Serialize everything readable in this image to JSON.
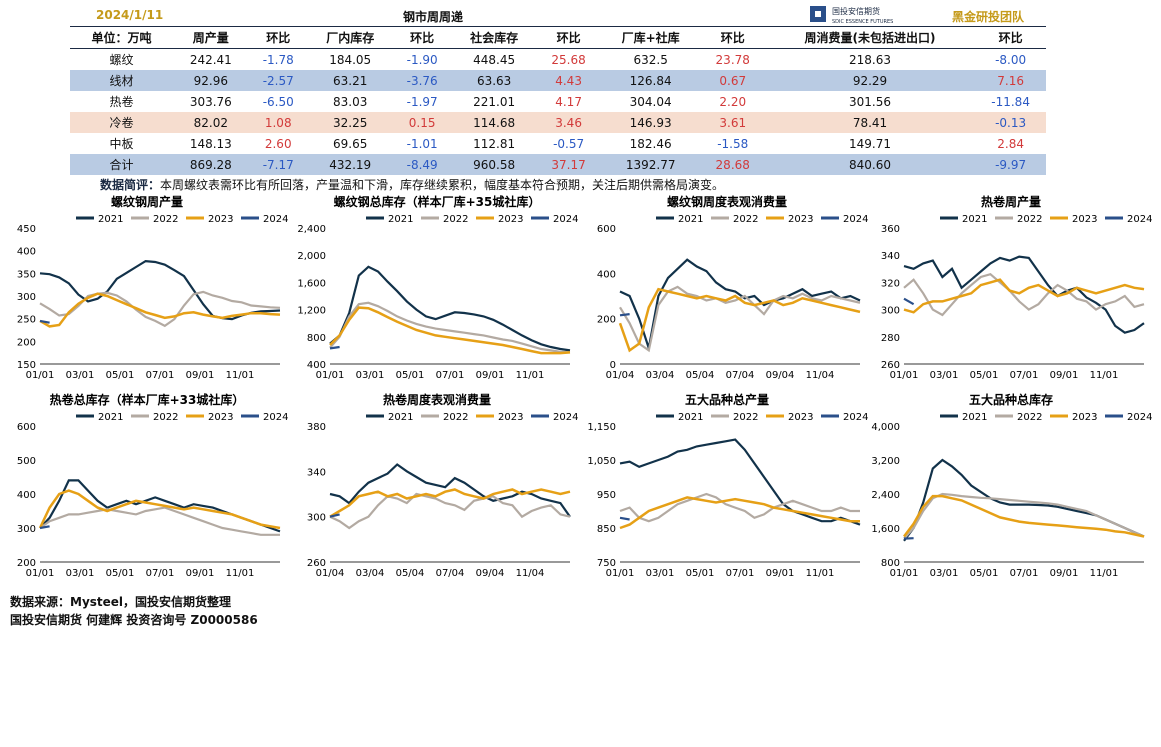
{
  "header": {
    "date": "2024/1/11",
    "title": "钢市周周递",
    "brand_cn": "国投安信期货",
    "brand_en": "SDIC ESSENCE FUTURES",
    "team": "黑金研投团队"
  },
  "table": {
    "headers": [
      "单位：万吨",
      "周产量",
      "环比",
      "厂内库存",
      "环比",
      "社会库存",
      "环比",
      "厂库+社库",
      "环比",
      "周消费量(未包括进出口)",
      "环比"
    ],
    "rows": [
      [
        "螺纹",
        "242.41",
        "-1.78",
        "184.05",
        "-1.90",
        "448.45",
        "25.68",
        "632.5",
        "23.78",
        "218.63",
        "-8.00"
      ],
      [
        "线材",
        "92.96",
        "-2.57",
        "63.21",
        "-3.76",
        "63.63",
        "4.43",
        "126.84",
        "0.67",
        "92.29",
        "7.16"
      ],
      [
        "热卷",
        "303.76",
        "-6.50",
        "83.03",
        "-1.97",
        "221.01",
        "4.17",
        "304.04",
        "2.20",
        "301.56",
        "-11.84"
      ],
      [
        "冷卷",
        "82.02",
        "1.08",
        "32.25",
        "0.15",
        "114.68",
        "3.46",
        "146.93",
        "3.61",
        "78.41",
        "-0.13"
      ],
      [
        "中板",
        "148.13",
        "2.60",
        "69.65",
        "-1.01",
        "112.81",
        "-0.57",
        "182.46",
        "-1.58",
        "149.71",
        "2.84"
      ],
      [
        "合计",
        "869.28",
        "-7.17",
        "432.19",
        "-8.49",
        "960.58",
        "37.17",
        "1392.77",
        "28.68",
        "840.60",
        "-9.97"
      ]
    ]
  },
  "comment": {
    "label": "数据简评：",
    "text": "本周螺纹表需环比有所回落，产量温和下滑，库存继续累积，幅度基本符合预期，关注后期供需格局演变。"
  },
  "source": {
    "line1": "数据来源：Mysteel，国投安信期货整理",
    "line2": "国投安信期货 何建辉 投资咨询号 Z0000586"
  },
  "chart_data": [
    {
      "type": "line",
      "title": "螺纹钢周产量",
      "ylim": [
        150,
        450
      ],
      "yticks": [
        "450",
        "400",
        "350",
        "300",
        "250",
        "200",
        "150"
      ],
      "xticks": [
        "01/01",
        "03/01",
        "05/01",
        "07/01",
        "09/01",
        "11/01"
      ],
      "series": [
        {
          "name": "2021",
          "color": "#12324a",
          "values": [
            350,
            348,
            341,
            328,
            303,
            288,
            294,
            310,
            338,
            351,
            364,
            377,
            375,
            369,
            357,
            344,
            313,
            282,
            256,
            251,
            249,
            257,
            263,
            266,
            267,
            268
          ]
        },
        {
          "name": "2022",
          "color": "#b3aaa2",
          "values": [
            284,
            271,
            257,
            260,
            278,
            300,
            305,
            307,
            301,
            288,
            270,
            254,
            245,
            234,
            249,
            279,
            304,
            309,
            301,
            296,
            289,
            286,
            279,
            277,
            275,
            274
          ]
        },
        {
          "name": "2023",
          "color": "#e6a016",
          "values": [
            245,
            233,
            236,
            264,
            283,
            296,
            305,
            300,
            291,
            282,
            273,
            264,
            258,
            252,
            255,
            262,
            264,
            259,
            255,
            252,
            256,
            259,
            262,
            262,
            260,
            259
          ]
        },
        {
          "name": "2024",
          "color": "#2a4f8a",
          "values": [
            245,
            241
          ]
        }
      ]
    },
    {
      "type": "line",
      "title": "螺纹钢总库存（样本厂库+35城社库）",
      "ylim": [
        400,
        2400
      ],
      "yticks": [
        "2,400",
        "2,000",
        "1,600",
        "1,200",
        "800",
        "400"
      ],
      "xticks": [
        "01/01",
        "03/01",
        "05/01",
        "07/01",
        "09/01",
        "11/01"
      ],
      "series": [
        {
          "name": "2021",
          "color": "#12324a",
          "values": [
            700,
            820,
            1150,
            1700,
            1830,
            1760,
            1610,
            1470,
            1320,
            1200,
            1100,
            1060,
            1110,
            1160,
            1150,
            1130,
            1100,
            1050,
            980,
            900,
            820,
            750,
            690,
            650,
            620,
            600
          ]
        },
        {
          "name": "2022",
          "color": "#b3aaa2",
          "values": [
            640,
            800,
            1100,
            1280,
            1300,
            1250,
            1180,
            1100,
            1040,
            990,
            950,
            920,
            900,
            880,
            860,
            840,
            820,
            790,
            760,
            740,
            700,
            660,
            620,
            600,
            580,
            570
          ]
        },
        {
          "name": "2023",
          "color": "#e6a016",
          "values": [
            680,
            820,
            1050,
            1230,
            1220,
            1160,
            1090,
            1020,
            960,
            900,
            860,
            820,
            800,
            780,
            760,
            740,
            720,
            700,
            680,
            650,
            620,
            590,
            560,
            560,
            560,
            570
          ]
        },
        {
          "name": "2024",
          "color": "#2a4f8a",
          "values": [
            630,
            650
          ]
        }
      ]
    },
    {
      "type": "line",
      "title": "螺纹钢周度表观消费量",
      "ylim": [
        0,
        600
      ],
      "yticks": [
        "600",
        "400",
        "200",
        "0"
      ],
      "xticks": [
        "01/04",
        "03/04",
        "05/04",
        "07/04",
        "09/04",
        "11/04"
      ],
      "series": [
        {
          "name": "2021",
          "color": "#12324a",
          "values": [
            320,
            300,
            200,
            70,
            300,
            380,
            420,
            460,
            430,
            410,
            360,
            330,
            320,
            290,
            300,
            260,
            280,
            290,
            310,
            330,
            300,
            310,
            320,
            290,
            300,
            280
          ]
        },
        {
          "name": "2022",
          "color": "#b3aaa2",
          "values": [
            250,
            180,
            90,
            60,
            260,
            320,
            340,
            310,
            300,
            280,
            290,
            270,
            280,
            300,
            260,
            220,
            280,
            300,
            290,
            310,
            290,
            280,
            300,
            290,
            280,
            270
          ]
        },
        {
          "name": "2023",
          "color": "#e6a016",
          "values": [
            180,
            60,
            90,
            250,
            330,
            320,
            310,
            300,
            290,
            300,
            290,
            280,
            300,
            270,
            260,
            270,
            280,
            260,
            270,
            290,
            280,
            270,
            260,
            250,
            240,
            230
          ]
        },
        {
          "name": "2024",
          "color": "#2a4f8a",
          "values": [
            215,
            220
          ]
        }
      ]
    },
    {
      "type": "line",
      "title": "热卷周产量",
      "ylim": [
        260,
        360
      ],
      "yticks": [
        "360",
        "340",
        "320",
        "300",
        "280",
        "260"
      ],
      "xticks": [
        "01/01",
        "03/01",
        "05/01",
        "07/01",
        "09/01",
        "11/01"
      ],
      "series": [
        {
          "name": "2021",
          "color": "#12324a",
          "values": [
            332,
            330,
            334,
            336,
            324,
            330,
            316,
            322,
            328,
            334,
            338,
            336,
            339,
            338,
            328,
            318,
            310,
            314,
            316,
            309,
            305,
            300,
            288,
            283,
            285,
            290
          ]
        },
        {
          "name": "2022",
          "color": "#b3aaa2",
          "values": [
            316,
            322,
            312,
            300,
            296,
            304,
            312,
            318,
            324,
            326,
            320,
            314,
            306,
            300,
            304,
            312,
            318,
            314,
            308,
            306,
            300,
            304,
            306,
            310,
            302,
            304
          ]
        },
        {
          "name": "2023",
          "color": "#e6a016",
          "values": [
            300,
            298,
            304,
            306,
            306,
            308,
            310,
            312,
            318,
            320,
            322,
            314,
            312,
            316,
            318,
            314,
            310,
            312,
            316,
            314,
            312,
            314,
            316,
            318,
            316,
            315
          ]
        },
        {
          "name": "2024",
          "color": "#2a4f8a",
          "values": [
            308,
            304
          ]
        }
      ]
    },
    {
      "type": "line",
      "title": "热卷总库存（样本厂库+33城社库）",
      "ylim": [
        200,
        600
      ],
      "yticks": [
        "600",
        "500",
        "400",
        "300",
        "200"
      ],
      "xticks": [
        "01/01",
        "03/01",
        "05/01",
        "07/01",
        "09/01",
        "11/01"
      ],
      "series": [
        {
          "name": "2021",
          "color": "#12324a",
          "values": [
            300,
            330,
            380,
            440,
            440,
            410,
            380,
            360,
            370,
            380,
            370,
            380,
            390,
            380,
            370,
            360,
            370,
            365,
            360,
            350,
            340,
            330,
            320,
            310,
            300,
            290
          ]
        },
        {
          "name": "2022",
          "color": "#b3aaa2",
          "values": [
            300,
            320,
            330,
            340,
            340,
            345,
            350,
            355,
            350,
            345,
            340,
            350,
            355,
            360,
            350,
            340,
            330,
            320,
            310,
            300,
            295,
            290,
            285,
            280,
            280,
            280
          ]
        },
        {
          "name": "2023",
          "color": "#e6a016",
          "values": [
            300,
            360,
            400,
            410,
            400,
            380,
            360,
            350,
            360,
            370,
            380,
            375,
            370,
            365,
            360,
            355,
            360,
            355,
            350,
            345,
            340,
            330,
            320,
            310,
            305,
            300
          ]
        },
        {
          "name": "2024",
          "color": "#2a4f8a",
          "values": [
            300,
            305
          ]
        }
      ]
    },
    {
      "type": "line",
      "title": "热卷周度表观消费量",
      "ylim": [
        260,
        380
      ],
      "yticks": [
        "380",
        "340",
        "300",
        "260"
      ],
      "xticks": [
        "01/04",
        "03/04",
        "05/04",
        "07/04",
        "09/04",
        "11/04"
      ],
      "series": [
        {
          "name": "2021",
          "color": "#12324a",
          "values": [
            320,
            318,
            312,
            322,
            330,
            334,
            338,
            346,
            340,
            335,
            330,
            328,
            326,
            334,
            330,
            324,
            318,
            314,
            316,
            318,
            322,
            320,
            316,
            314,
            312,
            300
          ]
        },
        {
          "name": "2022",
          "color": "#b3aaa2",
          "values": [
            300,
            296,
            290,
            296,
            300,
            310,
            318,
            316,
            312,
            320,
            318,
            316,
            312,
            310,
            306,
            314,
            316,
            318,
            312,
            310,
            300,
            305,
            308,
            310,
            302,
            300
          ]
        },
        {
          "name": "2023",
          "color": "#e6a016",
          "values": [
            300,
            305,
            310,
            318,
            320,
            322,
            318,
            320,
            316,
            318,
            320,
            318,
            322,
            324,
            320,
            318,
            316,
            320,
            322,
            324,
            320,
            322,
            324,
            322,
            320,
            322
          ]
        },
        {
          "name": "2024",
          "color": "#2a4f8a",
          "values": [
            300,
            302
          ]
        }
      ]
    },
    {
      "type": "line",
      "title": "五大品种总产量",
      "ylim": [
        750,
        1150
      ],
      "yticks": [
        "1,150",
        "1,050",
        "950",
        "850",
        "750"
      ],
      "xticks": [
        "01/01",
        "03/01",
        "05/01",
        "07/01",
        "09/01",
        "11/01"
      ],
      "series": [
        {
          "name": "2021",
          "color": "#12324a",
          "values": [
            1040,
            1045,
            1030,
            1040,
            1050,
            1060,
            1075,
            1080,
            1090,
            1095,
            1100,
            1105,
            1110,
            1080,
            1040,
            1000,
            960,
            920,
            900,
            890,
            880,
            870,
            870,
            880,
            870,
            860
          ]
        },
        {
          "name": "2022",
          "color": "#b3aaa2",
          "values": [
            900,
            910,
            880,
            870,
            880,
            900,
            920,
            930,
            940,
            950,
            940,
            920,
            910,
            900,
            880,
            890,
            910,
            920,
            930,
            920,
            910,
            900,
            900,
            910,
            900,
            900
          ]
        },
        {
          "name": "2023",
          "color": "#e6a016",
          "values": [
            850,
            860,
            880,
            900,
            910,
            920,
            930,
            940,
            935,
            930,
            925,
            930,
            935,
            930,
            925,
            920,
            910,
            905,
            900,
            895,
            890,
            885,
            880,
            875,
            870,
            870
          ]
        },
        {
          "name": "2024",
          "color": "#2a4f8a",
          "values": [
            880,
            875
          ]
        }
      ]
    },
    {
      "type": "line",
      "title": "五大品种总库存",
      "ylim": [
        800,
        4000
      ],
      "yticks": [
        "4,000",
        "3,200",
        "2,400",
        "1,600",
        "800"
      ],
      "xticks": [
        "01/01",
        "03/01",
        "05/01",
        "07/01",
        "09/01",
        "11/01"
      ],
      "series": [
        {
          "name": "2021",
          "color": "#12324a",
          "values": [
            1300,
            1600,
            2200,
            3000,
            3200,
            3050,
            2850,
            2600,
            2450,
            2300,
            2200,
            2150,
            2150,
            2150,
            2140,
            2130,
            2100,
            2050,
            2000,
            1950,
            1900,
            1800,
            1700,
            1600,
            1500,
            1400
          ]
        },
        {
          "name": "2022",
          "color": "#b3aaa2",
          "values": [
            1350,
            1600,
            2000,
            2300,
            2400,
            2380,
            2350,
            2330,
            2310,
            2300,
            2280,
            2260,
            2240,
            2220,
            2200,
            2180,
            2150,
            2100,
            2050,
            2000,
            1900,
            1800,
            1700,
            1600,
            1500,
            1400
          ]
        },
        {
          "name": "2023",
          "color": "#e6a016",
          "values": [
            1400,
            1700,
            2100,
            2350,
            2350,
            2300,
            2250,
            2150,
            2050,
            1950,
            1850,
            1800,
            1750,
            1720,
            1700,
            1680,
            1660,
            1640,
            1620,
            1600,
            1580,
            1560,
            1520,
            1500,
            1450,
            1400
          ]
        },
        {
          "name": "2024",
          "color": "#2a4f8a",
          "values": [
            1350,
            1360
          ]
        }
      ]
    }
  ]
}
